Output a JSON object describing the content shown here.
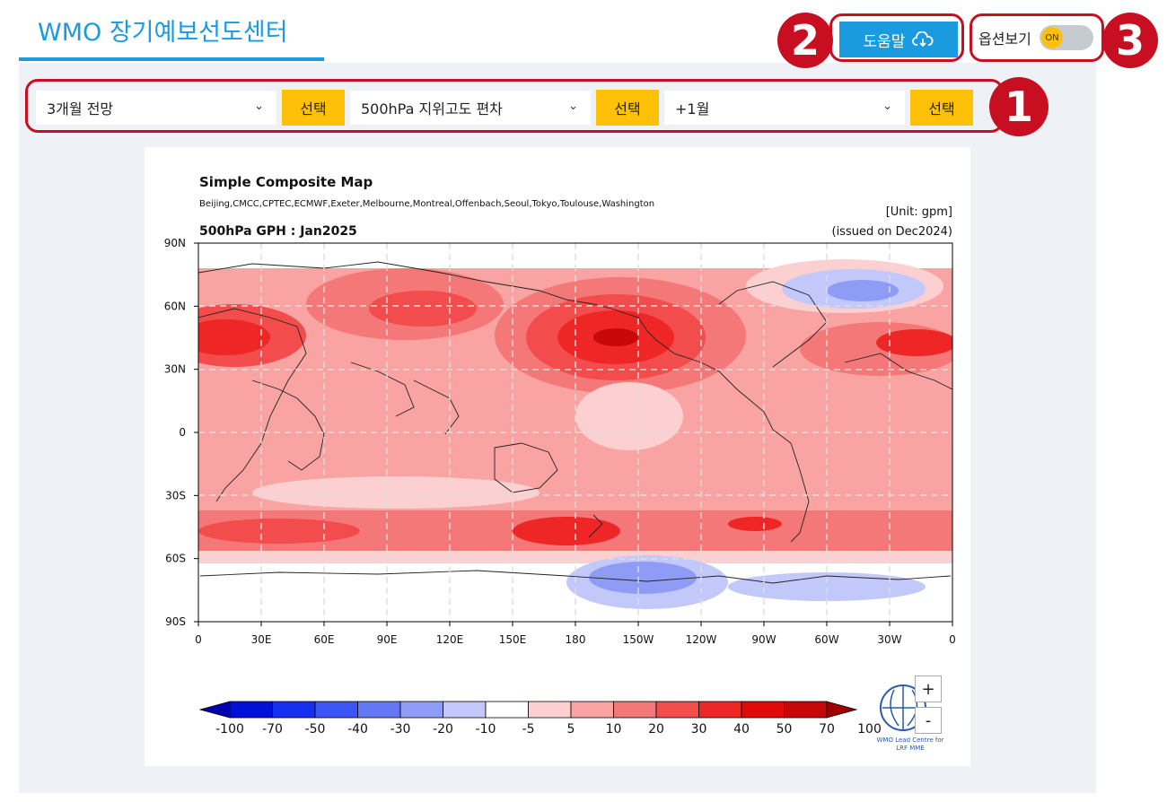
{
  "header": {
    "title": "WMO 장기예보선도센터"
  },
  "help": {
    "label": "도움말",
    "badge": "2"
  },
  "options": {
    "label": "옵션보기",
    "toggle_state": "ON",
    "badge": "3"
  },
  "controls": {
    "badge": "1",
    "period": {
      "value": "3개월 전망",
      "button": "선택"
    },
    "variable": {
      "value": "500hPa 지위고도 편차",
      "button": "선택"
    },
    "lead": {
      "value": "+1월",
      "button": "선택"
    }
  },
  "map": {
    "title": "Simple Composite Map",
    "centres": "Beijing,CMCC,CPTEC,ECMWF,Exeter,Melbourne,Montreal,Offenbach,Seoul,Tokyo,Toulouse,Washington",
    "unit": "[Unit: gpm]",
    "subtitle": "500hPa GPH : Jan2025",
    "issued": "(issued on Dec2024)",
    "y_ticks": [
      "90N",
      "60N",
      "30N",
      "0",
      "30S",
      "60S",
      "90S"
    ],
    "x_ticks": [
      "0",
      "30E",
      "60E",
      "90E",
      "120E",
      "150E",
      "180",
      "150W",
      "120W",
      "90W",
      "60W",
      "30W",
      "0"
    ],
    "colorbar_labels": [
      "-100",
      "-70",
      "-50",
      "-40",
      "-30",
      "-20",
      "-10",
      "-5",
      "5",
      "10",
      "20",
      "30",
      "40",
      "50",
      "70",
      "100"
    ],
    "colorbar_colors": [
      "#0000b0",
      "#0010d8",
      "#1630f0",
      "#3c55f5",
      "#6478f5",
      "#8f9cf5",
      "#c3c8fb",
      "#ffffff",
      "#fcd0d0",
      "#f9a3a3",
      "#f57878",
      "#f24c4c",
      "#ef2626",
      "#e00a0a",
      "#c80808",
      "#a00000"
    ],
    "logo_text": [
      "WMO Lead Centre for",
      "LRF MME"
    ],
    "zoom_in": "+",
    "zoom_out": "-"
  }
}
